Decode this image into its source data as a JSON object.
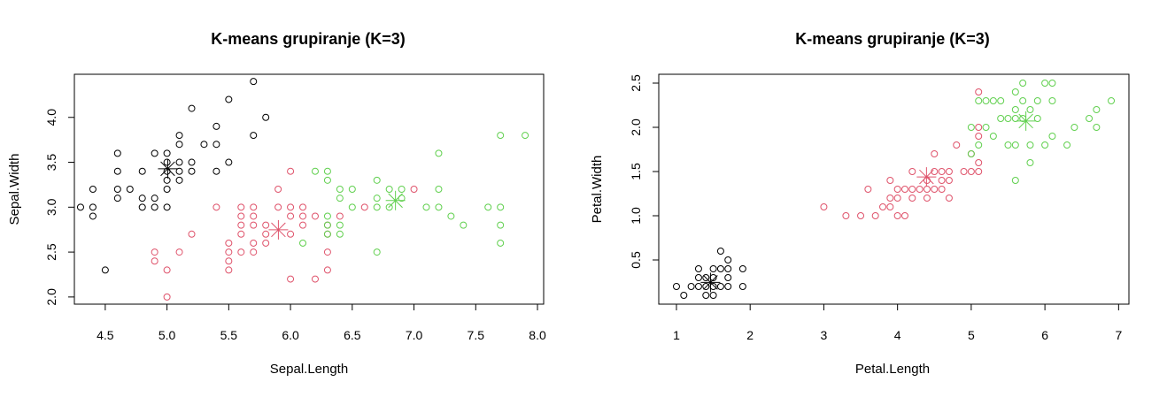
{
  "colors": {
    "cluster_1": "#000000",
    "cluster_2": "#DF536B",
    "cluster_3": "#61D04F"
  },
  "chart_data": [
    {
      "type": "scatter",
      "title": "K-means grupiranje (K=3)",
      "xlabel": "Sepal.Length",
      "ylabel": "Sepal.Width",
      "xlim": [
        4.25,
        8.05
      ],
      "ylim": [
        1.92,
        4.48
      ],
      "xticks": [
        "4.5",
        "5.0",
        "5.5",
        "6.0",
        "6.5",
        "7.0",
        "7.5",
        "8.0"
      ],
      "yticks": [
        "2.0",
        "2.5",
        "3.0",
        "3.5",
        "4.0"
      ],
      "series": [
        {
          "cluster": 1,
          "color": "#000000",
          "points": [
            [
              4.3,
              3.0
            ],
            [
              4.4,
              2.9
            ],
            [
              4.4,
              3.0
            ],
            [
              4.4,
              3.2
            ],
            [
              4.5,
              2.3
            ],
            [
              4.6,
              3.1
            ],
            [
              4.6,
              3.2
            ],
            [
              4.6,
              3.4
            ],
            [
              4.6,
              3.6
            ],
            [
              4.7,
              3.2
            ],
            [
              4.8,
              3.0
            ],
            [
              4.8,
              3.1
            ],
            [
              4.8,
              3.4
            ],
            [
              4.9,
              3.0
            ],
            [
              4.9,
              3.1
            ],
            [
              4.9,
              3.6
            ],
            [
              5.0,
              3.0
            ],
            [
              5.0,
              3.2
            ],
            [
              5.0,
              3.3
            ],
            [
              5.0,
              3.4
            ],
            [
              5.0,
              3.5
            ],
            [
              5.0,
              3.6
            ],
            [
              5.1,
              3.3
            ],
            [
              5.1,
              3.4
            ],
            [
              5.1,
              3.5
            ],
            [
              5.1,
              3.7
            ],
            [
              5.1,
              3.8
            ],
            [
              5.2,
              3.4
            ],
            [
              5.2,
              3.5
            ],
            [
              5.2,
              4.1
            ],
            [
              5.3,
              3.7
            ],
            [
              5.4,
              3.4
            ],
            [
              5.4,
              3.7
            ],
            [
              5.4,
              3.9
            ],
            [
              5.5,
              3.5
            ],
            [
              5.5,
              4.2
            ],
            [
              5.7,
              3.8
            ],
            [
              5.7,
              4.4
            ],
            [
              5.8,
              4.0
            ]
          ],
          "center": [
            5.006,
            3.428
          ]
        },
        {
          "cluster": 2,
          "color": "#DF536B",
          "points": [
            [
              4.9,
              2.4
            ],
            [
              4.9,
              2.5
            ],
            [
              5.0,
              2.0
            ],
            [
              5.0,
              2.3
            ],
            [
              5.1,
              2.5
            ],
            [
              5.2,
              2.7
            ],
            [
              5.4,
              3.0
            ],
            [
              5.5,
              2.3
            ],
            [
              5.5,
              2.4
            ],
            [
              5.5,
              2.5
            ],
            [
              5.5,
              2.6
            ],
            [
              5.6,
              2.5
            ],
            [
              5.6,
              2.7
            ],
            [
              5.6,
              2.8
            ],
            [
              5.6,
              2.9
            ],
            [
              5.6,
              3.0
            ],
            [
              5.7,
              2.5
            ],
            [
              5.7,
              2.6
            ],
            [
              5.7,
              2.8
            ],
            [
              5.7,
              2.9
            ],
            [
              5.7,
              3.0
            ],
            [
              5.8,
              2.6
            ],
            [
              5.8,
              2.7
            ],
            [
              5.8,
              2.8
            ],
            [
              5.9,
              3.0
            ],
            [
              5.9,
              3.2
            ],
            [
              6.0,
              2.2
            ],
            [
              6.0,
              2.7
            ],
            [
              6.0,
              2.9
            ],
            [
              6.0,
              3.0
            ],
            [
              6.0,
              3.4
            ],
            [
              6.1,
              2.8
            ],
            [
              6.1,
              2.9
            ],
            [
              6.1,
              3.0
            ],
            [
              6.2,
              2.2
            ],
            [
              6.2,
              2.9
            ],
            [
              6.3,
              2.3
            ],
            [
              6.3,
              2.5
            ],
            [
              6.3,
              2.7
            ],
            [
              6.3,
              2.8
            ],
            [
              6.4,
              2.9
            ],
            [
              6.6,
              3.0
            ],
            [
              7.0,
              3.2
            ]
          ],
          "center": [
            5.902,
            2.748
          ]
        },
        {
          "cluster": 3,
          "color": "#61D04F",
          "points": [
            [
              6.1,
              2.6
            ],
            [
              6.2,
              3.4
            ],
            [
              6.3,
              2.7
            ],
            [
              6.3,
              2.8
            ],
            [
              6.3,
              2.9
            ],
            [
              6.3,
              3.3
            ],
            [
              6.3,
              3.4
            ],
            [
              6.4,
              2.7
            ],
            [
              6.4,
              2.8
            ],
            [
              6.4,
              3.1
            ],
            [
              6.4,
              3.2
            ],
            [
              6.5,
              3.0
            ],
            [
              6.5,
              3.2
            ],
            [
              6.7,
              2.5
            ],
            [
              6.7,
              3.0
            ],
            [
              6.7,
              3.1
            ],
            [
              6.7,
              3.3
            ],
            [
              6.8,
              3.0
            ],
            [
              6.8,
              3.2
            ],
            [
              6.9,
              3.1
            ],
            [
              6.9,
              3.2
            ],
            [
              7.1,
              3.0
            ],
            [
              7.2,
              3.0
            ],
            [
              7.2,
              3.2
            ],
            [
              7.2,
              3.6
            ],
            [
              7.3,
              2.9
            ],
            [
              7.4,
              2.8
            ],
            [
              7.6,
              3.0
            ],
            [
              7.7,
              2.6
            ],
            [
              7.7,
              2.8
            ],
            [
              7.7,
              3.0
            ],
            [
              7.7,
              3.8
            ],
            [
              7.9,
              3.8
            ]
          ],
          "center": [
            6.85,
            3.074
          ]
        }
      ]
    },
    {
      "type": "scatter",
      "title": "K-means grupiranje (K=3)",
      "xlabel": "Petal.Length",
      "ylabel": "Petal.Width",
      "xlim": [
        0.76,
        7.14
      ],
      "ylim": [
        0.0,
        2.6
      ],
      "xticks": [
        "1",
        "2",
        "3",
        "4",
        "5",
        "6",
        "7"
      ],
      "yticks": [
        "0.5",
        "1.0",
        "1.5",
        "2.0",
        "2.5"
      ],
      "series": [
        {
          "cluster": 1,
          "color": "#000000",
          "points": [
            [
              1.0,
              0.2
            ],
            [
              1.1,
              0.1
            ],
            [
              1.2,
              0.2
            ],
            [
              1.3,
              0.2
            ],
            [
              1.3,
              0.3
            ],
            [
              1.3,
              0.4
            ],
            [
              1.4,
              0.1
            ],
            [
              1.4,
              0.2
            ],
            [
              1.4,
              0.3
            ],
            [
              1.5,
              0.1
            ],
            [
              1.5,
              0.2
            ],
            [
              1.5,
              0.3
            ],
            [
              1.5,
              0.4
            ],
            [
              1.6,
              0.2
            ],
            [
              1.6,
              0.4
            ],
            [
              1.6,
              0.6
            ],
            [
              1.7,
              0.2
            ],
            [
              1.7,
              0.3
            ],
            [
              1.7,
              0.4
            ],
            [
              1.7,
              0.5
            ],
            [
              1.9,
              0.2
            ],
            [
              1.9,
              0.4
            ]
          ],
          "center": [
            1.462,
            0.246
          ]
        },
        {
          "cluster": 2,
          "color": "#DF536B",
          "points": [
            [
              3.0,
              1.1
            ],
            [
              3.3,
              1.0
            ],
            [
              3.5,
              1.0
            ],
            [
              3.6,
              1.3
            ],
            [
              3.7,
              1.0
            ],
            [
              3.8,
              1.1
            ],
            [
              3.9,
              1.1
            ],
            [
              3.9,
              1.2
            ],
            [
              3.9,
              1.4
            ],
            [
              4.0,
              1.0
            ],
            [
              4.0,
              1.2
            ],
            [
              4.0,
              1.3
            ],
            [
              4.1,
              1.0
            ],
            [
              4.1,
              1.3
            ],
            [
              4.2,
              1.2
            ],
            [
              4.2,
              1.3
            ],
            [
              4.2,
              1.5
            ],
            [
              4.3,
              1.3
            ],
            [
              4.4,
              1.2
            ],
            [
              4.4,
              1.3
            ],
            [
              4.4,
              1.4
            ],
            [
              4.5,
              1.3
            ],
            [
              4.5,
              1.5
            ],
            [
              4.5,
              1.7
            ],
            [
              4.6,
              1.3
            ],
            [
              4.6,
              1.4
            ],
            [
              4.6,
              1.5
            ],
            [
              4.7,
              1.2
            ],
            [
              4.7,
              1.4
            ],
            [
              4.7,
              1.5
            ],
            [
              4.8,
              1.8
            ],
            [
              4.9,
              1.5
            ],
            [
              5.0,
              1.5
            ],
            [
              5.0,
              1.7
            ],
            [
              5.1,
              1.5
            ],
            [
              5.1,
              1.6
            ],
            [
              5.1,
              1.9
            ],
            [
              5.1,
              2.0
            ],
            [
              5.1,
              2.4
            ]
          ],
          "center": [
            4.393,
            1.439
          ]
        },
        {
          "cluster": 3,
          "color": "#61D04F",
          "points": [
            [
              5.0,
              1.7
            ],
            [
              5.0,
              2.0
            ],
            [
              5.1,
              1.8
            ],
            [
              5.1,
              2.3
            ],
            [
              5.2,
              2.0
            ],
            [
              5.2,
              2.3
            ],
            [
              5.3,
              1.9
            ],
            [
              5.3,
              2.3
            ],
            [
              5.4,
              2.1
            ],
            [
              5.4,
              2.3
            ],
            [
              5.5,
              1.8
            ],
            [
              5.5,
              2.1
            ],
            [
              5.6,
              1.4
            ],
            [
              5.6,
              1.8
            ],
            [
              5.6,
              2.1
            ],
            [
              5.6,
              2.2
            ],
            [
              5.6,
              2.4
            ],
            [
              5.7,
              2.1
            ],
            [
              5.7,
              2.3
            ],
            [
              5.7,
              2.5
            ],
            [
              5.8,
              1.6
            ],
            [
              5.8,
              1.8
            ],
            [
              5.8,
              2.2
            ],
            [
              5.9,
              2.1
            ],
            [
              5.9,
              2.3
            ],
            [
              6.0,
              1.8
            ],
            [
              6.0,
              2.5
            ],
            [
              6.1,
              1.9
            ],
            [
              6.1,
              2.3
            ],
            [
              6.1,
              2.5
            ],
            [
              6.3,
              1.8
            ],
            [
              6.4,
              2.0
            ],
            [
              6.6,
              2.1
            ],
            [
              6.7,
              2.0
            ],
            [
              6.7,
              2.2
            ],
            [
              6.9,
              2.3
            ]
          ],
          "center": [
            5.742,
            2.071
          ]
        }
      ]
    }
  ]
}
